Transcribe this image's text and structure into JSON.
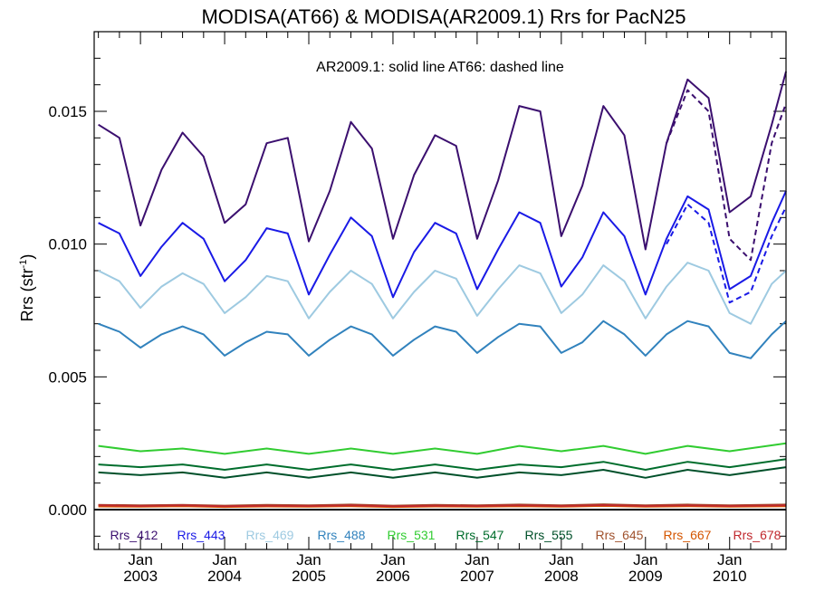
{
  "chart_data": {
    "type": "line",
    "title": "MODISA(AT66) & MODISA(AR2009.1)  Rrs for PacN25",
    "annotation": "AR2009.1: solid line   AT66: dashed line",
    "ylabel": "Rrs (str",
    "ylabel_sup": "-1",
    "ylabel_close": ")",
    "ylim": [
      -0.0015,
      0.018
    ],
    "y_ticks": [
      0.0,
      0.005,
      0.01,
      0.015
    ],
    "y_tick_labels": [
      "0.000",
      "0.005",
      "0.010",
      "0.015"
    ],
    "xlim": [
      2002.45,
      2010.67
    ],
    "x_ticks": [
      2003.0,
      2004.0,
      2005.0,
      2006.0,
      2007.0,
      2008.0,
      2009.0,
      2010.0
    ],
    "x_tick_labels_top": [
      "Jan",
      "Jan",
      "Jan",
      "Jan",
      "Jan",
      "Jan",
      "Jan",
      "Jan"
    ],
    "x_tick_labels_bottom": [
      "2003",
      "2004",
      "2005",
      "2006",
      "2007",
      "2008",
      "2009",
      "2010"
    ],
    "zero_line": true,
    "series": [
      {
        "name": "Rrs_412",
        "color": "#3b0f6f",
        "style": "solid",
        "x": [
          2002.5,
          2002.75,
          2003.0,
          2003.25,
          2003.5,
          2003.75,
          2004.0,
          2004.25,
          2004.5,
          2004.75,
          2005.0,
          2005.25,
          2005.5,
          2005.75,
          2006.0,
          2006.25,
          2006.5,
          2006.75,
          2007.0,
          2007.25,
          2007.5,
          2007.75,
          2008.0,
          2008.25,
          2008.5,
          2008.75,
          2009.0,
          2009.25,
          2009.5,
          2009.75,
          2010.0,
          2010.25,
          2010.5,
          2010.67
        ],
        "values": [
          0.0145,
          0.014,
          0.0107,
          0.0128,
          0.0142,
          0.0133,
          0.0108,
          0.0115,
          0.0138,
          0.014,
          0.0101,
          0.012,
          0.0146,
          0.0136,
          0.0102,
          0.0126,
          0.0141,
          0.0137,
          0.0102,
          0.0124,
          0.0152,
          0.015,
          0.0103,
          0.0122,
          0.0152,
          0.0141,
          0.0098,
          0.0138,
          0.0162,
          0.0155,
          0.0112,
          0.0118,
          0.0145,
          0.0165
        ]
      },
      {
        "name": "Rrs_412 AT66",
        "color": "#3b0f6f",
        "style": "dashed",
        "x": [
          2009.25,
          2009.5,
          2009.75,
          2010.0,
          2010.25,
          2010.5,
          2010.67
        ],
        "values": [
          0.0138,
          0.0158,
          0.015,
          0.0102,
          0.0094,
          0.0138,
          0.0153
        ]
      },
      {
        "name": "Rrs_443",
        "color": "#1a1ae6",
        "style": "solid",
        "x": [
          2002.5,
          2002.75,
          2003.0,
          2003.25,
          2003.5,
          2003.75,
          2004.0,
          2004.25,
          2004.5,
          2004.75,
          2005.0,
          2005.25,
          2005.5,
          2005.75,
          2006.0,
          2006.25,
          2006.5,
          2006.75,
          2007.0,
          2007.25,
          2007.5,
          2007.75,
          2008.0,
          2008.25,
          2008.5,
          2008.75,
          2009.0,
          2009.25,
          2009.5,
          2009.75,
          2010.0,
          2010.25,
          2010.5,
          2010.67
        ],
        "values": [
          0.0108,
          0.0104,
          0.0088,
          0.0099,
          0.0108,
          0.0102,
          0.0086,
          0.0094,
          0.0106,
          0.0104,
          0.0081,
          0.0096,
          0.011,
          0.0103,
          0.008,
          0.0097,
          0.0108,
          0.0104,
          0.0083,
          0.0098,
          0.0112,
          0.0108,
          0.0084,
          0.0095,
          0.0112,
          0.0103,
          0.0081,
          0.0102,
          0.0118,
          0.0113,
          0.0083,
          0.0088,
          0.0108,
          0.012
        ]
      },
      {
        "name": "Rrs_443 AT66",
        "color": "#1a1ae6",
        "style": "dashed",
        "x": [
          2009.25,
          2009.5,
          2009.75,
          2010.0,
          2010.25,
          2010.5,
          2010.67
        ],
        "values": [
          0.01,
          0.0115,
          0.0108,
          0.0078,
          0.0082,
          0.0103,
          0.0114
        ]
      },
      {
        "name": "Rrs_469",
        "color": "#9ecae1",
        "style": "solid",
        "x": [
          2002.5,
          2002.75,
          2003.0,
          2003.25,
          2003.5,
          2003.75,
          2004.0,
          2004.25,
          2004.5,
          2004.75,
          2005.0,
          2005.25,
          2005.5,
          2005.75,
          2006.0,
          2006.25,
          2006.5,
          2006.75,
          2007.0,
          2007.25,
          2007.5,
          2007.75,
          2008.0,
          2008.25,
          2008.5,
          2008.75,
          2009.0,
          2009.25,
          2009.5,
          2009.75,
          2010.0,
          2010.25,
          2010.5,
          2010.67
        ],
        "values": [
          0.009,
          0.0086,
          0.0076,
          0.0084,
          0.0089,
          0.0085,
          0.0074,
          0.008,
          0.0088,
          0.0086,
          0.0072,
          0.0082,
          0.009,
          0.0085,
          0.0072,
          0.0082,
          0.009,
          0.0087,
          0.0073,
          0.0083,
          0.0092,
          0.0089,
          0.0074,
          0.0081,
          0.0092,
          0.0086,
          0.0072,
          0.0084,
          0.0093,
          0.009,
          0.0074,
          0.007,
          0.0085,
          0.009
        ]
      },
      {
        "name": "Rrs_488",
        "color": "#3182bd",
        "style": "solid",
        "x": [
          2002.5,
          2002.75,
          2003.0,
          2003.25,
          2003.5,
          2003.75,
          2004.0,
          2004.25,
          2004.5,
          2004.75,
          2005.0,
          2005.25,
          2005.5,
          2005.75,
          2006.0,
          2006.25,
          2006.5,
          2006.75,
          2007.0,
          2007.25,
          2007.5,
          2007.75,
          2008.0,
          2008.25,
          2008.5,
          2008.75,
          2009.0,
          2009.25,
          2009.5,
          2009.75,
          2010.0,
          2010.25,
          2010.5,
          2010.67
        ],
        "values": [
          0.007,
          0.0067,
          0.0061,
          0.0066,
          0.0069,
          0.0066,
          0.0058,
          0.0063,
          0.0067,
          0.0066,
          0.0058,
          0.0064,
          0.0069,
          0.0066,
          0.0058,
          0.0064,
          0.0069,
          0.0067,
          0.0059,
          0.0065,
          0.007,
          0.0069,
          0.0059,
          0.0063,
          0.0071,
          0.0066,
          0.0058,
          0.0066,
          0.0071,
          0.0069,
          0.0059,
          0.0057,
          0.0066,
          0.0071
        ]
      },
      {
        "name": "Rrs_531",
        "color": "#31cc31",
        "style": "solid",
        "x": [
          2002.5,
          2003.0,
          2003.5,
          2004.0,
          2004.5,
          2005.0,
          2005.5,
          2006.0,
          2006.5,
          2007.0,
          2007.5,
          2008.0,
          2008.5,
          2009.0,
          2009.5,
          2010.0,
          2010.67
        ],
        "values": [
          0.0024,
          0.0022,
          0.0023,
          0.0021,
          0.0023,
          0.0021,
          0.0023,
          0.0021,
          0.0023,
          0.0021,
          0.0024,
          0.0022,
          0.0024,
          0.0021,
          0.0024,
          0.0022,
          0.0025
        ]
      },
      {
        "name": "Rrs_547",
        "color": "#006d2c",
        "style": "solid",
        "x": [
          2002.5,
          2003.0,
          2003.5,
          2004.0,
          2004.5,
          2005.0,
          2005.5,
          2006.0,
          2006.5,
          2007.0,
          2007.5,
          2008.0,
          2008.5,
          2009.0,
          2009.5,
          2010.0,
          2010.67
        ],
        "values": [
          0.0017,
          0.0016,
          0.0017,
          0.0015,
          0.0017,
          0.0015,
          0.0017,
          0.0015,
          0.0017,
          0.0015,
          0.0017,
          0.0016,
          0.0018,
          0.0015,
          0.0018,
          0.0016,
          0.0019
        ]
      },
      {
        "name": "Rrs_555",
        "color": "#00502a",
        "style": "solid",
        "x": [
          2002.5,
          2003.0,
          2003.5,
          2004.0,
          2004.5,
          2005.0,
          2005.5,
          2006.0,
          2006.5,
          2007.0,
          2007.5,
          2008.0,
          2008.5,
          2009.0,
          2009.5,
          2010.0,
          2010.67
        ],
        "values": [
          0.0014,
          0.0013,
          0.0014,
          0.0012,
          0.0014,
          0.0012,
          0.0014,
          0.0012,
          0.0014,
          0.0012,
          0.0014,
          0.0013,
          0.0015,
          0.0012,
          0.0015,
          0.0013,
          0.0016
        ]
      },
      {
        "name": "Rrs_645",
        "color": "#a0522d",
        "style": "solid",
        "x": [
          2002.5,
          2003.0,
          2003.5,
          2004.0,
          2004.5,
          2005.0,
          2005.5,
          2006.0,
          2006.5,
          2007.0,
          2007.5,
          2008.0,
          2008.5,
          2009.0,
          2009.5,
          2010.0,
          2010.67
        ],
        "values": [
          0.00018,
          0.00016,
          0.00018,
          0.00015,
          0.00018,
          0.00016,
          0.00019,
          0.00015,
          0.00018,
          0.00016,
          0.00019,
          0.00016,
          0.0002,
          0.00016,
          0.00019,
          0.00016,
          0.00019
        ]
      },
      {
        "name": "Rrs_667",
        "color": "#d45500",
        "style": "solid",
        "x": [
          2002.5,
          2003.0,
          2003.5,
          2004.0,
          2004.5,
          2005.0,
          2005.5,
          2006.0,
          2006.5,
          2007.0,
          2007.5,
          2008.0,
          2008.5,
          2009.0,
          2009.5,
          2010.0,
          2010.67
        ],
        "values": [
          0.00012,
          0.00011,
          0.00013,
          0.0001,
          0.00012,
          0.00011,
          0.00013,
          0.0001,
          0.00012,
          0.00011,
          0.00013,
          0.00011,
          0.00014,
          0.00011,
          0.00013,
          0.00011,
          0.00013
        ]
      },
      {
        "name": "Rrs_678",
        "color": "#c0282d",
        "style": "solid",
        "x": [
          2002.5,
          2003.0,
          2003.5,
          2004.0,
          2004.5,
          2005.0,
          2005.5,
          2006.0,
          2006.5,
          2007.0,
          2007.5,
          2008.0,
          2008.5,
          2009.0,
          2009.5,
          2010.0,
          2010.67
        ],
        "values": [
          0.00016,
          0.00014,
          0.00016,
          0.00013,
          0.00015,
          0.00014,
          0.00016,
          0.00013,
          0.00015,
          0.00014,
          0.00016,
          0.00014,
          0.00017,
          0.00014,
          0.00016,
          0.00014,
          0.00016
        ]
      }
    ],
    "legend": [
      {
        "label": "Rrs_412",
        "color": "#3b0f6f"
      },
      {
        "label": "Rrs_443",
        "color": "#1a1ae6"
      },
      {
        "label": "Rrs_469",
        "color": "#9ecae1"
      },
      {
        "label": "Rrs_488",
        "color": "#3182bd"
      },
      {
        "label": "Rrs_531",
        "color": "#31cc31"
      },
      {
        "label": "Rrs_547",
        "color": "#006d2c"
      },
      {
        "label": "Rrs_555",
        "color": "#00502a"
      },
      {
        "label": "Rrs_645",
        "color": "#a0522d"
      },
      {
        "label": "Rrs_667",
        "color": "#d45500"
      },
      {
        "label": "Rrs_678",
        "color": "#c0282d"
      }
    ],
    "legend_placement": "bottom inside plot"
  }
}
